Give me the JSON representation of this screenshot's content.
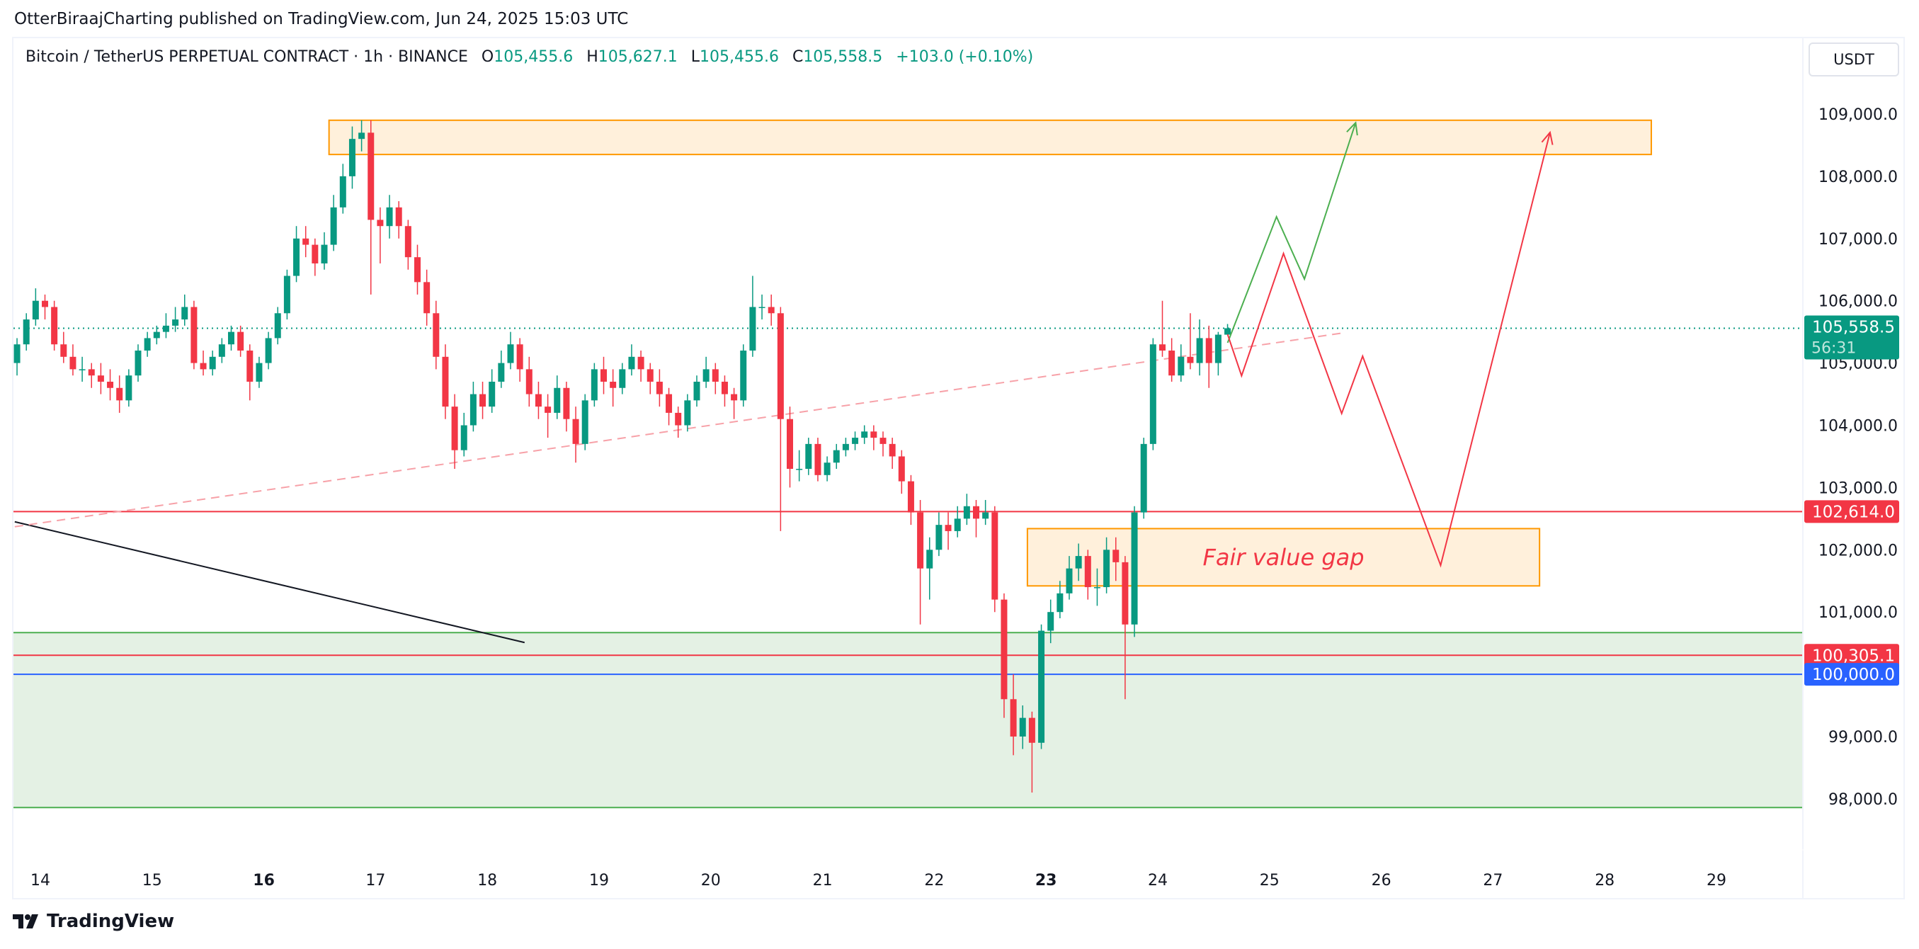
{
  "publisher_line": "OtterBiraajCharting published on TradingView.com, Jun 24, 2025 15:03 UTC",
  "legend": {
    "symbol": "Bitcoin / TetherUS PERPETUAL CONTRACT · 1h · BINANCE",
    "o_label": "O",
    "o": "105,455.6",
    "h_label": "H",
    "h": "105,627.1",
    "l_label": "L",
    "l": "105,455.6",
    "c_label": "C",
    "c": "105,558.5",
    "change": "+103.0 (+0.10%)"
  },
  "currency_button": "USDT",
  "logo_text": "TradingView",
  "colors": {
    "up": "#089981",
    "down": "#f23645",
    "blue": "#2962ff",
    "zone_orange": "#ff9800",
    "zone_fill": "#fff0db",
    "support_fill": "#e4f1e4",
    "support_line": "#4caf50"
  },
  "chart_data": {
    "type": "candlestick",
    "title": "",
    "price_ticks": [
      "109,000.0",
      "108,000.0",
      "107,000.0",
      "106,000.0",
      "105,000.0",
      "104,000.0",
      "103,000.0",
      "102,000.0",
      "101,000.0",
      "99,000.0",
      "98,000.0"
    ],
    "price_tick_values": [
      109000,
      108000,
      107000,
      106000,
      105000,
      104000,
      103000,
      102000,
      101000,
      99000,
      98000
    ],
    "time_ticks": [
      {
        "day": 14,
        "label": "14"
      },
      {
        "day": 15,
        "label": "15"
      },
      {
        "day": 16,
        "label": "16",
        "bold": true
      },
      {
        "day": 17,
        "label": "17"
      },
      {
        "day": 18,
        "label": "18"
      },
      {
        "day": 19,
        "label": "19"
      },
      {
        "day": 20,
        "label": "20"
      },
      {
        "day": 21,
        "label": "21"
      },
      {
        "day": 22,
        "label": "22"
      },
      {
        "day": 23,
        "label": "23",
        "bold": true
      },
      {
        "day": 24,
        "label": "24"
      },
      {
        "day": 25,
        "label": "25"
      },
      {
        "day": 26,
        "label": "26"
      },
      {
        "day": 27,
        "label": "27"
      },
      {
        "day": 28,
        "label": "28"
      },
      {
        "day": 29,
        "label": "29"
      }
    ],
    "ylim": [
      97300,
      109800
    ],
    "price_badges": [
      {
        "value": 105558.5,
        "label": "105,558.5",
        "sub": "56:31",
        "color": "#089981"
      },
      {
        "value": 102614.0,
        "label": "102,614.0",
        "color": "#f23645"
      },
      {
        "value": 100305.1,
        "label": "100,305.1",
        "color": "#f23645"
      },
      {
        "value": 100000.0,
        "label": "100,000.0",
        "color": "#2962ff"
      }
    ],
    "candles_columns": [
      "time",
      "open",
      "high",
      "low",
      "close"
    ],
    "candles": [
      [
        "13 18:00",
        105000,
        105400,
        104800,
        105300
      ],
      [
        "13 20:00",
        105300,
        105800,
        105200,
        105700
      ],
      [
        "13 22:00",
        105700,
        106200,
        105600,
        106000
      ],
      [
        "14 00:00",
        106000,
        106100,
        105700,
        105900
      ],
      [
        "14 02:00",
        105900,
        106000,
        105200,
        105300
      ],
      [
        "14 04:00",
        105300,
        105500,
        105000,
        105100
      ],
      [
        "14 06:00",
        105100,
        105300,
        104800,
        104900
      ],
      [
        "14 08:00",
        104900,
        105100,
        104700,
        104900
      ],
      [
        "14 10:00",
        104900,
        105000,
        104600,
        104800
      ],
      [
        "14 12:00",
        104800,
        105000,
        104500,
        104700
      ],
      [
        "14 14:00",
        104700,
        104900,
        104400,
        104600
      ],
      [
        "14 16:00",
        104600,
        104800,
        104200,
        104400
      ],
      [
        "14 18:00",
        104400,
        104900,
        104300,
        104800
      ],
      [
        "14 20:00",
        104800,
        105300,
        104700,
        105200
      ],
      [
        "14 22:00",
        105200,
        105500,
        105100,
        105400
      ],
      [
        "15 00:00",
        105400,
        105600,
        105300,
        105500
      ],
      [
        "15 02:00",
        105500,
        105800,
        105400,
        105600
      ],
      [
        "15 04:00",
        105600,
        105900,
        105500,
        105700
      ],
      [
        "15 06:00",
        105700,
        106100,
        105600,
        105900
      ],
      [
        "15 08:00",
        105900,
        106000,
        104900,
        105000
      ],
      [
        "15 10:00",
        105000,
        105200,
        104800,
        104900
      ],
      [
        "15 12:00",
        104900,
        105200,
        104800,
        105100
      ],
      [
        "15 14:00",
        105100,
        105400,
        105000,
        105300
      ],
      [
        "15 16:00",
        105300,
        105600,
        105200,
        105500
      ],
      [
        "15 18:00",
        105500,
        105600,
        105100,
        105200
      ],
      [
        "15 20:00",
        105200,
        105300,
        104400,
        104700
      ],
      [
        "15 22:00",
        104700,
        105100,
        104600,
        105000
      ],
      [
        "16 00:00",
        105000,
        105500,
        104900,
        105400
      ],
      [
        "16 02:00",
        105400,
        105900,
        105300,
        105800
      ],
      [
        "16 04:00",
        105800,
        106500,
        105700,
        106400
      ],
      [
        "16 06:00",
        106400,
        107200,
        106300,
        107000
      ],
      [
        "16 08:00",
        107000,
        107200,
        106700,
        106900
      ],
      [
        "16 10:00",
        106900,
        107000,
        106400,
        106600
      ],
      [
        "16 12:00",
        106600,
        107100,
        106500,
        106900
      ],
      [
        "16 14:00",
        106900,
        107700,
        106800,
        107500
      ],
      [
        "16 16:00",
        107500,
        108200,
        107400,
        108000
      ],
      [
        "16 18:00",
        108000,
        108800,
        107800,
        108600
      ],
      [
        "16 20:00",
        108600,
        108900,
        108400,
        108700
      ],
      [
        "16 22:00",
        108700,
        108900,
        106100,
        107300
      ],
      [
        "17 00:00",
        107300,
        107500,
        106600,
        107200
      ],
      [
        "17 02:00",
        107200,
        107700,
        107000,
        107500
      ],
      [
        "17 04:00",
        107500,
        107600,
        107000,
        107200
      ],
      [
        "17 06:00",
        107200,
        107300,
        106500,
        106700
      ],
      [
        "17 08:00",
        106700,
        106900,
        106100,
        106300
      ],
      [
        "17 10:00",
        106300,
        106500,
        105600,
        105800
      ],
      [
        "17 12:00",
        105800,
        106000,
        104900,
        105100
      ],
      [
        "17 14:00",
        105100,
        105300,
        104100,
        104300
      ],
      [
        "17 16:00",
        104300,
        104500,
        103300,
        103600
      ],
      [
        "17 18:00",
        103600,
        104200,
        103500,
        104000
      ],
      [
        "17 20:00",
        104000,
        104700,
        103900,
        104500
      ],
      [
        "17 22:00",
        104500,
        104700,
        104100,
        104300
      ],
      [
        "18 00:00",
        104300,
        104900,
        104200,
        104700
      ],
      [
        "18 02:00",
        104700,
        105200,
        104600,
        105000
      ],
      [
        "18 04:00",
        105000,
        105500,
        104900,
        105300
      ],
      [
        "18 06:00",
        105300,
        105400,
        104700,
        104900
      ],
      [
        "18 08:00",
        104900,
        105100,
        104300,
        104500
      ],
      [
        "18 10:00",
        104500,
        104700,
        104100,
        104300
      ],
      [
        "18 12:00",
        104300,
        104500,
        103800,
        104200
      ],
      [
        "18 14:00",
        104200,
        104800,
        104100,
        104600
      ],
      [
        "18 16:00",
        104600,
        104700,
        103900,
        104100
      ],
      [
        "18 18:00",
        104100,
        104300,
        103400,
        103700
      ],
      [
        "18 20:00",
        103700,
        104500,
        103600,
        104400
      ],
      [
        "18 22:00",
        104400,
        105000,
        104300,
        104900
      ],
      [
        "19 00:00",
        104900,
        105100,
        104500,
        104700
      ],
      [
        "19 02:00",
        104700,
        104900,
        104300,
        104600
      ],
      [
        "19 04:00",
        104600,
        105000,
        104500,
        104900
      ],
      [
        "19 06:00",
        104900,
        105300,
        104800,
        105100
      ],
      [
        "19 08:00",
        105100,
        105200,
        104700,
        104900
      ],
      [
        "19 10:00",
        104900,
        105000,
        104500,
        104700
      ],
      [
        "19 12:00",
        104700,
        104900,
        104300,
        104500
      ],
      [
        "19 14:00",
        104500,
        104600,
        104000,
        104200
      ],
      [
        "19 16:00",
        104200,
        104300,
        103800,
        104000
      ],
      [
        "19 18:00",
        104000,
        104500,
        103900,
        104400
      ],
      [
        "19 20:00",
        104400,
        104800,
        104300,
        104700
      ],
      [
        "19 22:00",
        104700,
        105100,
        104600,
        104900
      ],
      [
        "20 00:00",
        104900,
        105000,
        104500,
        104700
      ],
      [
        "20 02:00",
        104700,
        104800,
        104300,
        104500
      ],
      [
        "20 04:00",
        104500,
        104600,
        104100,
        104400
      ],
      [
        "20 06:00",
        104400,
        105300,
        104300,
        105200
      ],
      [
        "20 08:00",
        105200,
        106400,
        105100,
        105900
      ],
      [
        "20 10:00",
        105900,
        106100,
        105700,
        105900
      ],
      [
        "20 12:00",
        105900,
        106100,
        105600,
        105800
      ],
      [
        "20 14:00",
        105800,
        105900,
        102300,
        104100
      ],
      [
        "20 16:00",
        104100,
        104300,
        103000,
        103300
      ],
      [
        "20 18:00",
        103300,
        103600,
        103100,
        103300
      ],
      [
        "20 20:00",
        103300,
        103800,
        103200,
        103700
      ],
      [
        "20 22:00",
        103700,
        103800,
        103100,
        103200
      ],
      [
        "21 00:00",
        103200,
        103500,
        103100,
        103400
      ],
      [
        "21 02:00",
        103400,
        103700,
        103300,
        103600
      ],
      [
        "21 04:00",
        103600,
        103800,
        103500,
        103700
      ],
      [
        "21 06:00",
        103700,
        103900,
        103600,
        103800
      ],
      [
        "21 08:00",
        103800,
        104000,
        103700,
        103900
      ],
      [
        "21 10:00",
        103900,
        104000,
        103600,
        103800
      ],
      [
        "21 12:00",
        103800,
        103900,
        103500,
        103700
      ],
      [
        "21 14:00",
        103700,
        103800,
        103300,
        103500
      ],
      [
        "21 16:00",
        103500,
        103600,
        102900,
        103100
      ],
      [
        "21 18:00",
        103100,
        103200,
        102400,
        102600
      ],
      [
        "21 20:00",
        102600,
        102800,
        100800,
        101700
      ],
      [
        "21 22:00",
        101700,
        102200,
        101200,
        102000
      ],
      [
        "22 00:00",
        102000,
        102600,
        101900,
        102400
      ],
      [
        "22 02:00",
        102400,
        102600,
        102000,
        102300
      ],
      [
        "22 04:00",
        102300,
        102700,
        102200,
        102500
      ],
      [
        "22 06:00",
        102500,
        102900,
        102400,
        102700
      ],
      [
        "22 08:00",
        102700,
        102800,
        102200,
        102500
      ],
      [
        "22 10:00",
        102500,
        102800,
        102400,
        102600
      ],
      [
        "22 12:00",
        102600,
        102700,
        101000,
        101200
      ],
      [
        "22 14:00",
        101200,
        101300,
        99300,
        99600
      ],
      [
        "22 16:00",
        99600,
        100000,
        98700,
        99000
      ],
      [
        "22 18:00",
        99000,
        99500,
        98800,
        99300
      ],
      [
        "22 20:00",
        99300,
        99400,
        98100,
        98900
      ],
      [
        "22 22:00",
        98900,
        100800,
        98800,
        100700
      ],
      [
        "23 00:00",
        100700,
        101200,
        100500,
        101000
      ],
      [
        "23 02:00",
        101000,
        101500,
        100900,
        101300
      ],
      [
        "23 04:00",
        101300,
        101900,
        101200,
        101700
      ],
      [
        "23 06:00",
        101700,
        102100,
        101500,
        101900
      ],
      [
        "23 08:00",
        101900,
        102000,
        101200,
        101400
      ],
      [
        "23 10:00",
        101400,
        101700,
        101100,
        101400
      ],
      [
        "23 12:00",
        101400,
        102200,
        101300,
        102000
      ],
      [
        "23 14:00",
        102000,
        102200,
        101500,
        101800
      ],
      [
        "23 16:00",
        101800,
        101900,
        99600,
        100800
      ],
      [
        "23 18:00",
        100800,
        102700,
        100600,
        102600
      ],
      [
        "23 20:00",
        102600,
        103800,
        102500,
        103700
      ],
      [
        "23 22:00",
        103700,
        105400,
        103600,
        105300
      ],
      [
        "24 00:00",
        105300,
        106000,
        105100,
        105200
      ],
      [
        "24 02:00",
        105200,
        105400,
        104700,
        104800
      ],
      [
        "24 04:00",
        104800,
        105300,
        104700,
        105100
      ],
      [
        "24 06:00",
        105100,
        105800,
        104900,
        105000
      ],
      [
        "24 08:00",
        105000,
        105700,
        104800,
        105400
      ],
      [
        "24 10:00",
        105400,
        105600,
        104600,
        105000
      ],
      [
        "24 12:00",
        105000,
        105500,
        104800,
        105455.6
      ],
      [
        "24 14:00",
        105455.6,
        105627.1,
        105455.6,
        105558.5
      ]
    ],
    "drawings": {
      "supply_zone": {
        "from": "16 14:00",
        "to": "28 10:00",
        "top": 108900,
        "bottom": 108350
      },
      "fair_value_gap": {
        "from": "22 20:00",
        "to": "27 10:00",
        "top": 102340,
        "bottom": 101420,
        "label": "Fair value gap"
      },
      "support_zone": {
        "top": 100670,
        "bottom": 97860
      },
      "horizontal_lines": [
        {
          "price": 102614.0,
          "color": "#f23645"
        },
        {
          "price": 100305.1,
          "color": "#f23645"
        },
        {
          "price": 100000.0,
          "color": "#2962ff"
        }
      ],
      "trend_line_black": {
        "from": [
          "13 18:30",
          102450
        ],
        "to": [
          "18 08:00",
          100510
        ]
      },
      "trend_line_dashed": {
        "from": [
          "13 18:30",
          102370
        ],
        "to": [
          "25 15:30",
          105480
        ]
      },
      "bullish_path": [
        [
          "24 15:00",
          105325
        ],
        [
          "25 01:30",
          107350
        ],
        [
          "25 07:30",
          106350
        ],
        [
          "25 18:30",
          108860
        ]
      ],
      "bearish_path": [
        [
          "24 15:00",
          105460
        ],
        [
          "24 18:00",
          104795
        ],
        [
          "25 03:00",
          106760
        ],
        [
          "25 15:30",
          104190
        ],
        [
          "25 20:00",
          105110
        ],
        [
          "26 12:45",
          101750
        ],
        [
          "27 12:15",
          108705
        ]
      ]
    }
  }
}
